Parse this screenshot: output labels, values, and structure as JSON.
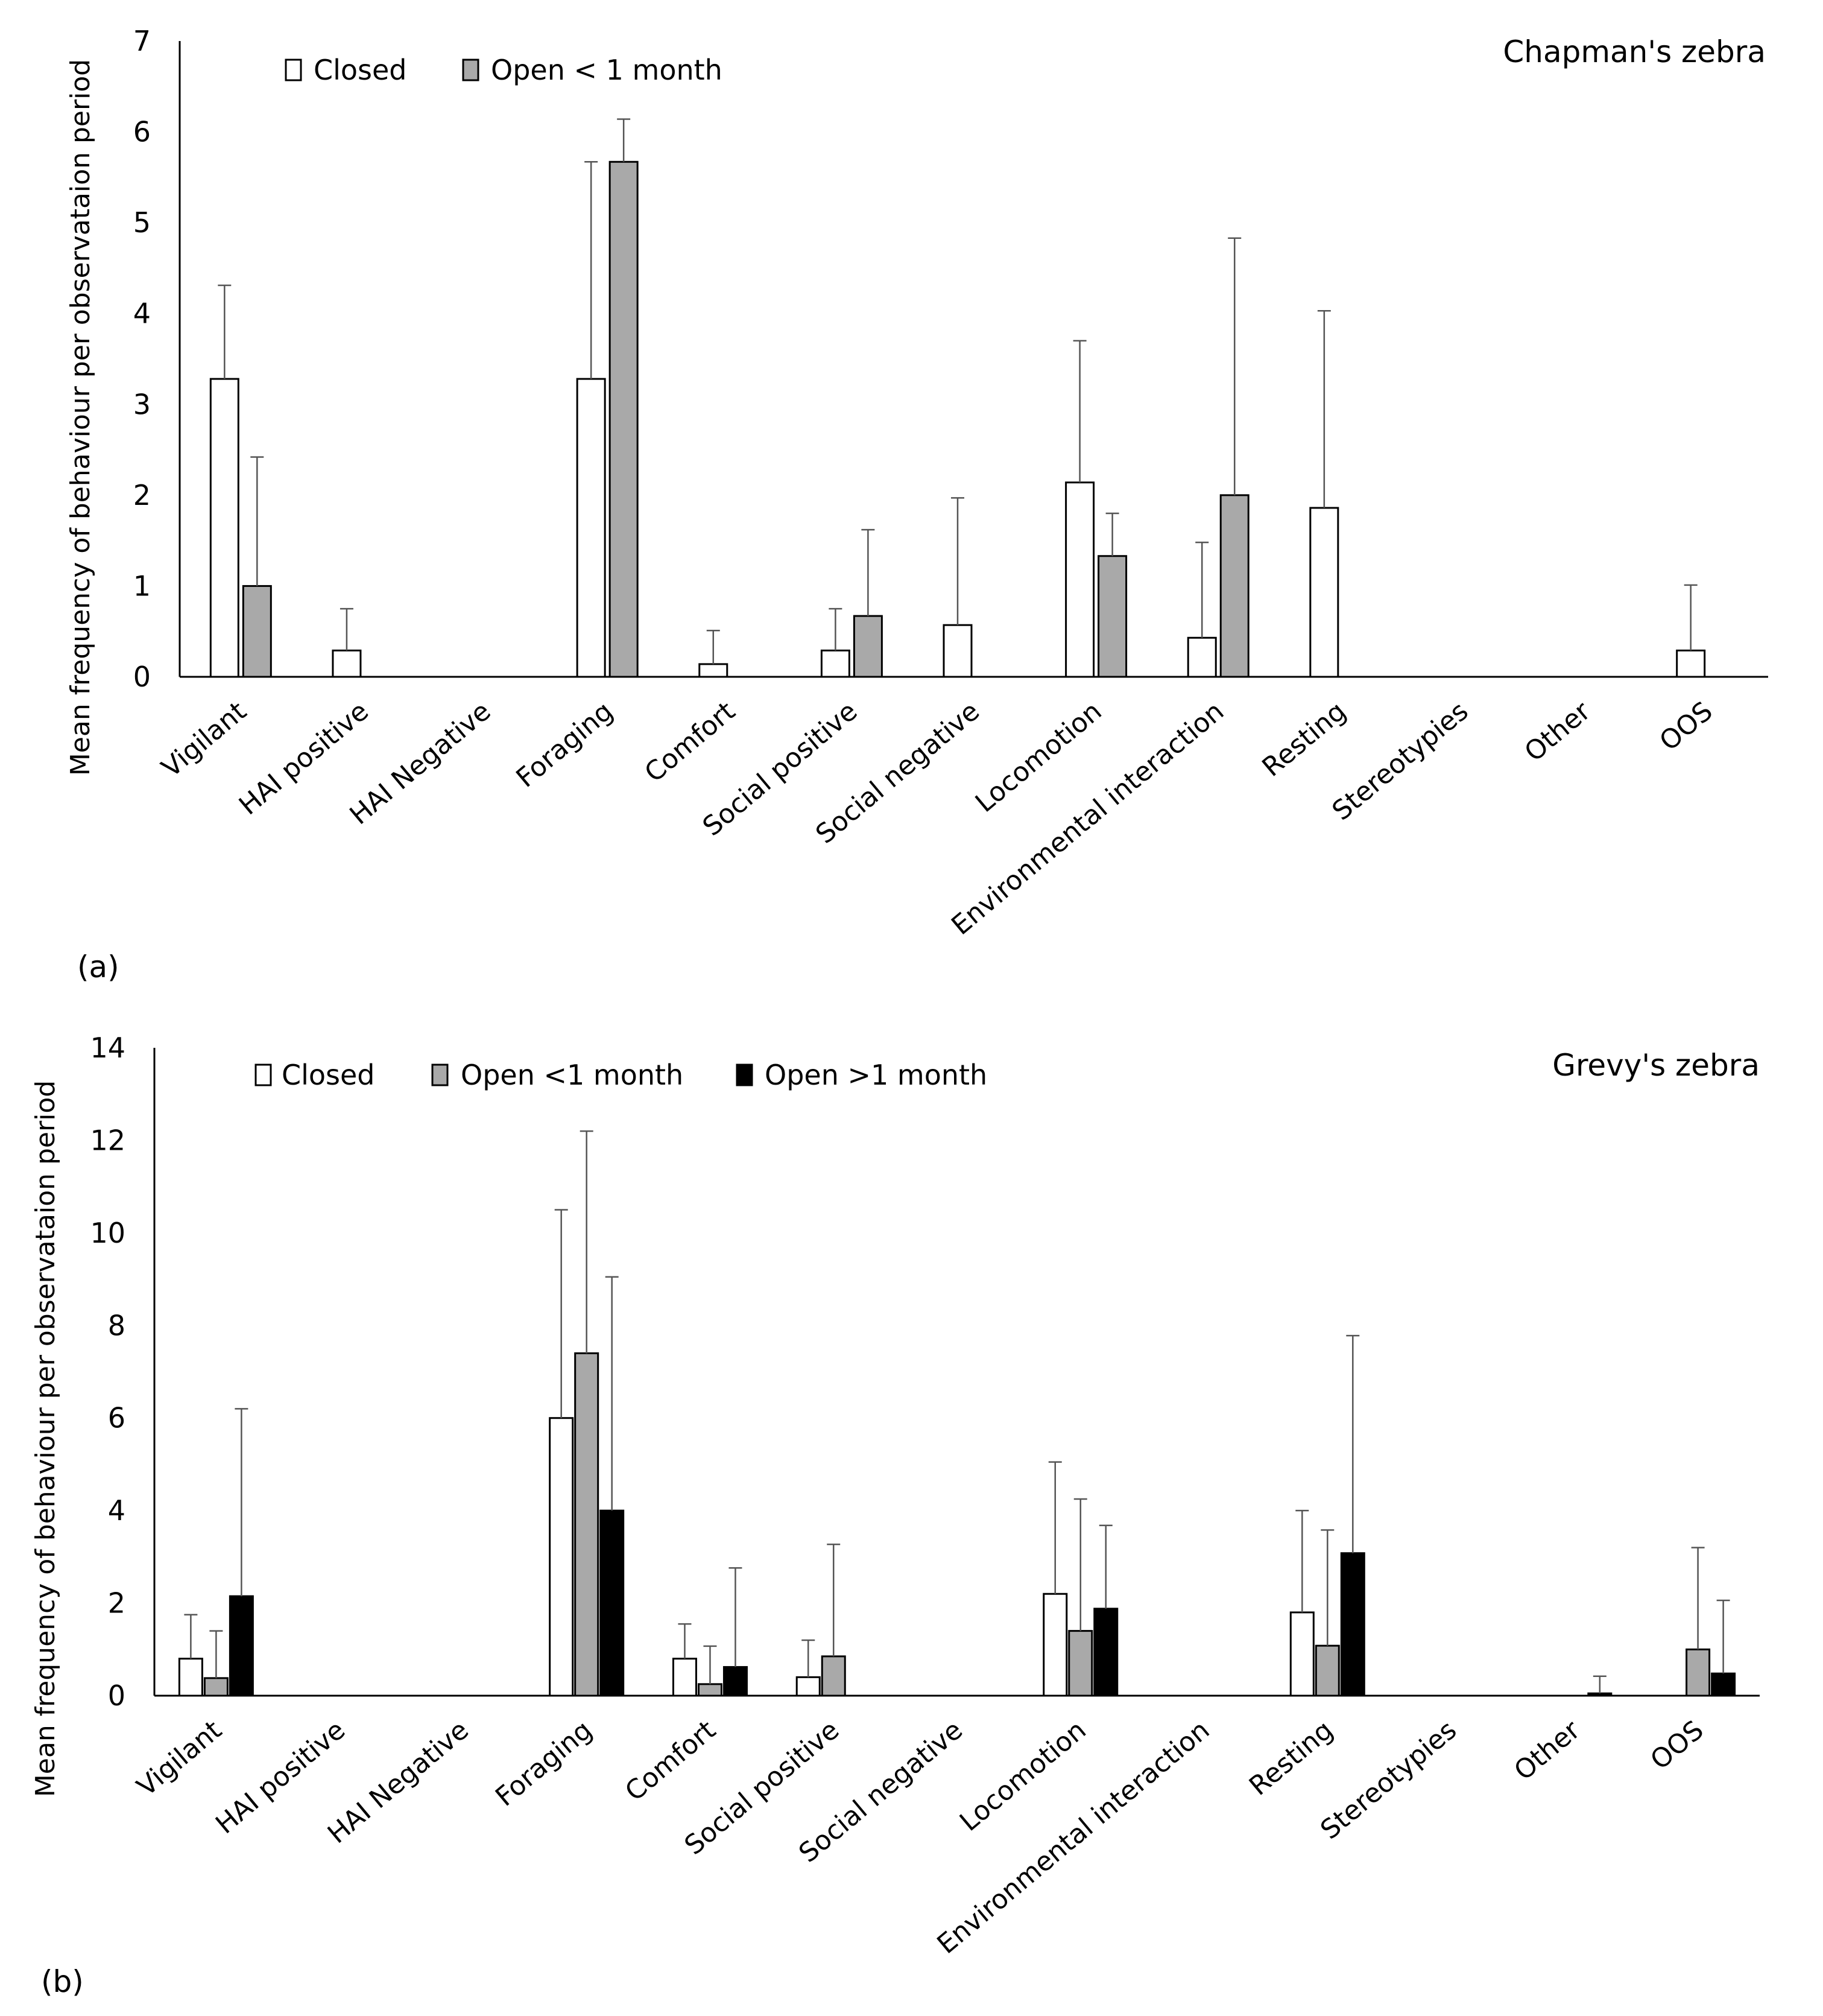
{
  "chart_data": [
    {
      "type": "bar",
      "panel_label": "(a)",
      "title": "Chapman's zebra",
      "ylabel": "Mean frequency of behaviour per observataion period",
      "xlabel": "",
      "ylim": [
        0,
        7
      ],
      "yticks": [
        "0",
        "1",
        "2",
        "3",
        "4",
        "5",
        "6",
        "7"
      ],
      "legend_position": "top-left",
      "categories": [
        "Vigilant",
        "HAI positive",
        "HAI Negative",
        "Foraging",
        "Comfort",
        "Social positive",
        "Social negative",
        "Locomotion",
        "Environmental interaction",
        "Resting",
        "Stereotypies",
        "Other",
        "OOS"
      ],
      "series": [
        {
          "name": "Closed",
          "color": "#ffffff",
          "values": [
            3.28,
            0.29,
            0,
            3.28,
            0.14,
            0.29,
            0.57,
            2.14,
            0.43,
            1.86,
            0,
            0,
            0.29
          ],
          "error": [
            1.03,
            0.46,
            0,
            2.39,
            0.37,
            0.46,
            1.4,
            1.56,
            1.05,
            2.17,
            0,
            0,
            0.72
          ]
        },
        {
          "name": "Open < 1 month",
          "color": "#a9a9a9",
          "values": [
            1.0,
            0,
            0,
            5.67,
            0,
            0.67,
            0,
            1.33,
            2.0,
            0,
            0,
            0,
            0
          ],
          "error": [
            1.42,
            0,
            0,
            0.47,
            0,
            0.95,
            0,
            0.47,
            2.83,
            0,
            0,
            0,
            0
          ]
        }
      ]
    },
    {
      "type": "bar",
      "panel_label": "(b)",
      "title": "Grevy's zebra",
      "ylabel": "Mean frequency of behaviour per observataion period",
      "xlabel": "",
      "ylim": [
        0,
        14
      ],
      "yticks": [
        "0",
        "2",
        "4",
        "6",
        "8",
        "10",
        "12",
        "14"
      ],
      "legend_position": "top-left",
      "categories": [
        "Vigilant",
        "HAI positive",
        "HAI Negative",
        "Foraging",
        "Comfort",
        "Social positive",
        "Social negative",
        "Locomotion",
        "Environmental interaction",
        "Resting",
        "Stereotypies",
        "Other",
        "OOS"
      ],
      "series": [
        {
          "name": "Closed",
          "color": "#ffffff",
          "values": [
            0.8,
            0,
            0,
            6.0,
            0.8,
            0.4,
            0,
            2.2,
            0,
            1.8,
            0,
            0,
            0
          ],
          "error": [
            0.95,
            0,
            0,
            4.5,
            0.75,
            0.8,
            0,
            2.85,
            0,
            2.2,
            0,
            0,
            0
          ]
        },
        {
          "name": "Open <1 month",
          "color": "#a9a9a9",
          "values": [
            0.38,
            0,
            0,
            7.4,
            0.25,
            0.85,
            0,
            1.4,
            0,
            1.08,
            0,
            0,
            1.0
          ],
          "error": [
            1.02,
            0,
            0,
            4.8,
            0.82,
            2.42,
            0,
            2.85,
            0,
            2.5,
            0,
            0,
            2.2
          ]
        },
        {
          "name": "Open >1 month",
          "color": "#000000",
          "values": [
            2.15,
            0,
            0,
            4.0,
            0.62,
            0,
            0,
            1.88,
            0,
            3.08,
            0,
            0.05,
            0.48
          ],
          "error": [
            4.05,
            0,
            0,
            5.05,
            2.14,
            0,
            0,
            1.8,
            0,
            4.7,
            0,
            0.37,
            1.58
          ]
        }
      ]
    }
  ]
}
